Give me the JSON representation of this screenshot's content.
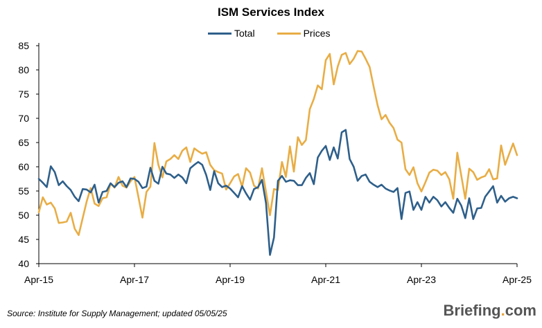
{
  "footer": {
    "source": "Source: Institute for Supply Management; updated 05/05/25",
    "brand_main": "Briefing",
    "brand_dot": ".",
    "brand_tld": "com"
  },
  "colors": {
    "total": "#2e5f8a",
    "prices": "#e8ad45",
    "axis": "#000000"
  },
  "chart_data": {
    "type": "line",
    "title": "ISM Services Index",
    "xlabel": "",
    "ylabel": "",
    "ylim": [
      40,
      85
    ],
    "yticks": [
      40,
      45,
      50,
      55,
      60,
      65,
      70,
      75,
      80,
      85
    ],
    "xlim": [
      "2015-04",
      "2025-04"
    ],
    "xticks": [
      "Apr-15",
      "Apr-17",
      "Apr-19",
      "Apr-21",
      "Apr-23",
      "Apr-25"
    ],
    "grid": false,
    "legend_position": "top-center",
    "x_start": "Apr-15",
    "x_frequency": "monthly",
    "series": [
      {
        "name": "Total",
        "values": [
          57.5,
          56.7,
          55.8,
          60.1,
          58.9,
          56.2,
          57.0,
          56.0,
          55.2,
          53.8,
          52.9,
          55.4,
          55.3,
          54.7,
          56.3,
          52.6,
          54.8,
          55.0,
          56.6,
          55.8,
          56.7,
          57.0,
          55.8,
          57.6,
          57.5,
          56.9,
          55.6,
          55.9,
          59.8,
          57.1,
          56.5,
          60.0,
          58.6,
          58.4,
          57.7,
          58.4,
          57.8,
          56.6,
          59.7,
          60.4,
          61.0,
          60.4,
          58.3,
          55.2,
          59.1,
          56.6,
          55.8,
          56.1,
          55.5,
          54.6,
          53.7,
          56.0,
          54.5,
          53.2,
          55.4,
          55.8,
          57.3,
          52.5,
          41.8,
          45.4,
          57.1,
          58.1,
          56.9,
          57.2,
          57.1,
          56.2,
          56.2,
          57.7,
          58.7,
          56.4,
          61.9,
          63.3,
          64.3,
          61.4,
          64.0,
          61.7,
          67.1,
          67.6,
          61.6,
          60.0,
          57.1,
          58.1,
          58.4,
          56.9,
          56.3,
          55.8,
          56.3,
          55.5,
          55.1,
          54.8,
          55.6,
          49.2,
          54.6,
          54.9,
          51.1,
          52.7,
          51.1,
          53.8,
          52.6,
          53.8,
          53.1,
          51.8,
          52.7,
          51.5,
          50.5,
          53.4,
          52.0,
          49.4,
          53.5,
          49.2,
          51.4,
          51.5,
          53.8,
          54.9,
          56.0,
          52.6,
          54.0,
          52.8,
          53.5,
          53.8,
          53.5
        ],
        "color": "#2e5f8a"
      },
      {
        "name": "Prices",
        "values": [
          50.6,
          53.7,
          52.2,
          52.6,
          51.4,
          48.4,
          48.5,
          48.7,
          50.5,
          47.2,
          45.9,
          49.4,
          52.8,
          55.6,
          52.4,
          51.9,
          53.5,
          53.7,
          56.5,
          55.7,
          57.9,
          56.1,
          55.7,
          57.0,
          57.9,
          53.7,
          49.5,
          54.8,
          55.9,
          64.9,
          60.4,
          57.8,
          61.1,
          61.6,
          62.4,
          61.6,
          63.3,
          64.0,
          61.0,
          63.8,
          63.2,
          62.7,
          63.0,
          60.4,
          59.3,
          58.9,
          58.6,
          55.3,
          56.6,
          58.0,
          58.5,
          55.9,
          59.7,
          58.8,
          56.1,
          55.5,
          59.7,
          54.8,
          50.0,
          55.4,
          55.2,
          61.0,
          57.9,
          64.2,
          59.0,
          66.1,
          64.5,
          65.5,
          71.9,
          74.0,
          76.8,
          76.0,
          82.0,
          83.3,
          77.0,
          80.7,
          83.1,
          83.5,
          81.2,
          82.3,
          83.9,
          83.8,
          82.3,
          80.6,
          76.6,
          72.7,
          69.8,
          70.7,
          69.1,
          68.0,
          65.6,
          65.0,
          59.5,
          58.3,
          59.9,
          56.6,
          54.9,
          56.8,
          58.8,
          59.4,
          59.2,
          58.3,
          58.9,
          57.4,
          53.4,
          62.9,
          58.2,
          53.4,
          59.6,
          58.9,
          57.3,
          57.8,
          58.1,
          59.5,
          57.4,
          57.6,
          64.4,
          60.4,
          62.6,
          64.8,
          62.4
        ],
        "color": "#e8ad45"
      }
    ]
  }
}
